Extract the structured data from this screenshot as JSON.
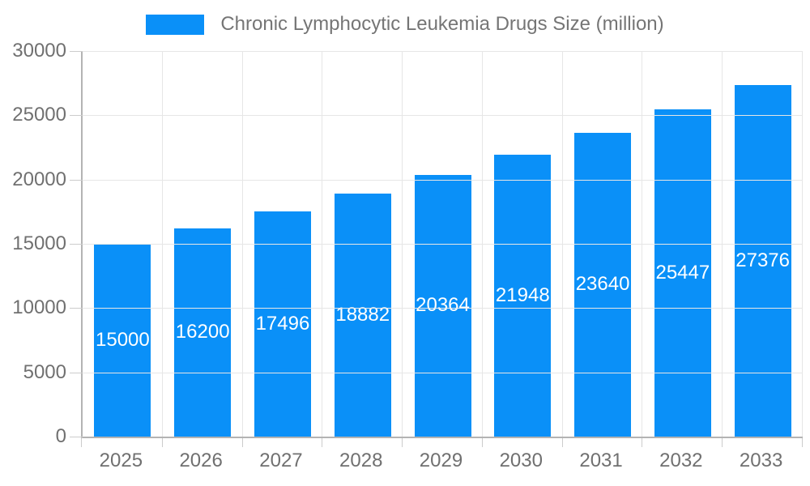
{
  "legend": {
    "label": "Chronic Lymphocytic Leukemia Drugs Size (million)",
    "swatch_color": "#0a90f8"
  },
  "colors": {
    "bar": "#0a90f8",
    "bar_value_text": "#ffffff",
    "axis_line": "#b3b3b3",
    "gridline": "#e6e6e6",
    "tick": "#cccccc",
    "axis_text": "#707070",
    "legend_text": "#757575",
    "background": "#ffffff"
  },
  "chart_data": {
    "type": "bar",
    "title": "",
    "xlabel": "",
    "ylabel": "",
    "categories": [
      "2025",
      "2026",
      "2027",
      "2028",
      "2029",
      "2030",
      "2031",
      "2032",
      "2033"
    ],
    "series": [
      {
        "name": "Chronic Lymphocytic Leukemia Drugs Size (million)",
        "values": [
          15000,
          16200,
          17496,
          18882,
          20364,
          21948,
          23640,
          25447,
          27376
        ]
      }
    ],
    "value_labels_shown": true,
    "value_label_position": "centered-inside-bar",
    "ylim": [
      0,
      30000
    ],
    "yticks": [
      0,
      5000,
      10000,
      15000,
      20000,
      25000,
      30000
    ],
    "grid": "horizontal-and-vertical",
    "legend_position": "top-center"
  }
}
